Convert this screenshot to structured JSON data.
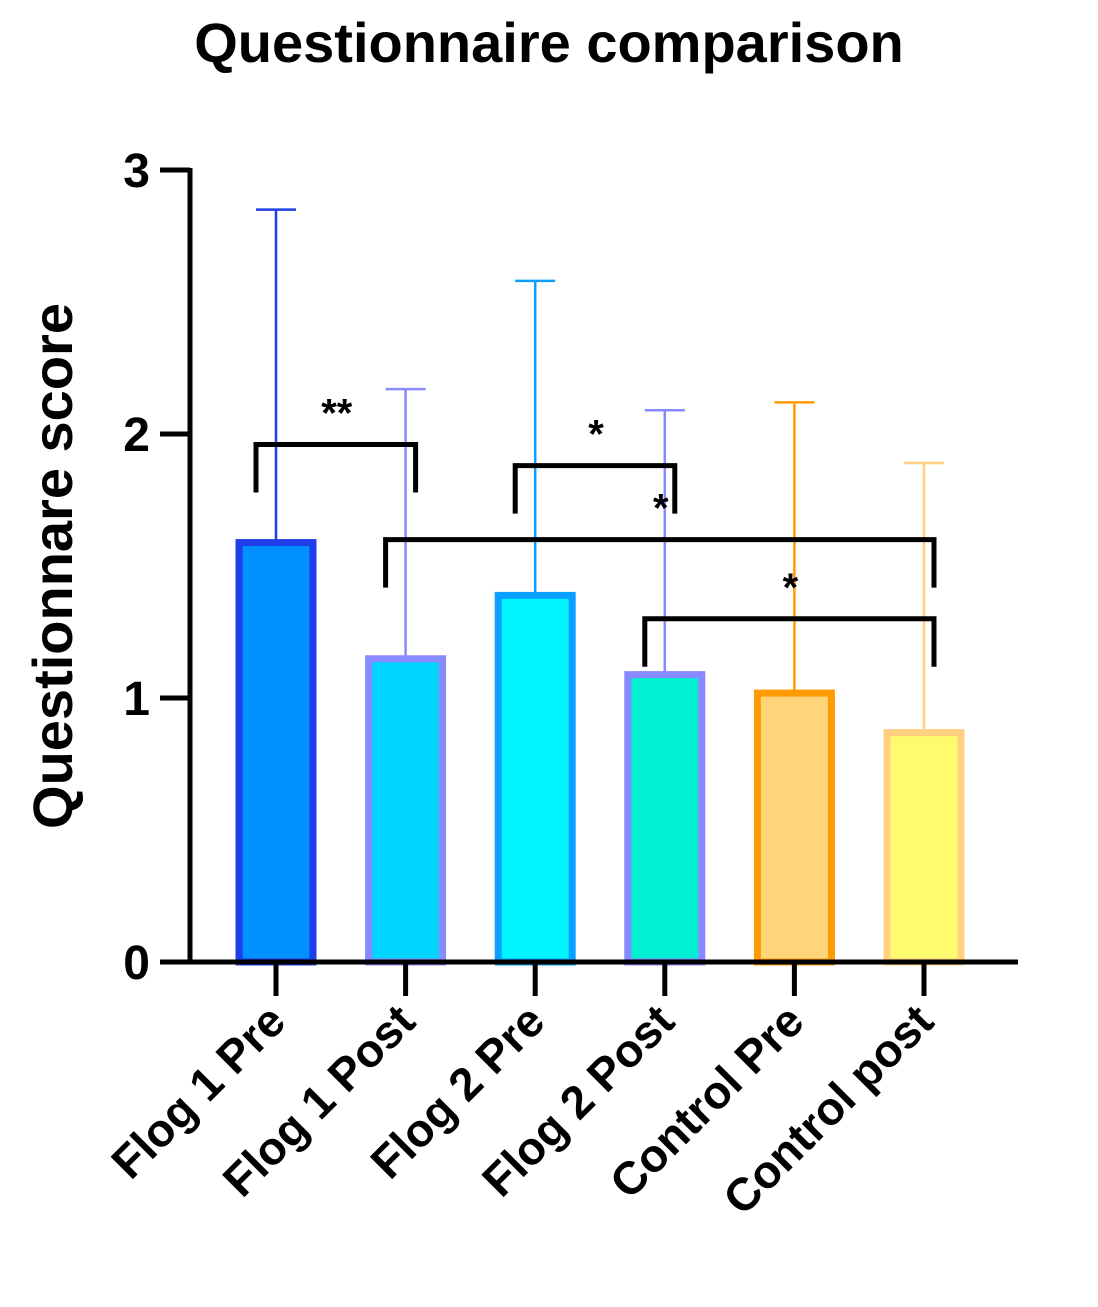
{
  "chart_data": {
    "type": "bar",
    "title": "Questionnaire comparison",
    "xlabel": "",
    "ylabel": "Questionnare score",
    "ylim": [
      0,
      3
    ],
    "yticks": [
      "0",
      "1",
      "2",
      "3"
    ],
    "grid": false,
    "categories": [
      "Flog 1 Pre",
      "Flog 1 Post",
      "Flog 2 Pre",
      "Flog 2 Post",
      "Control Pre",
      "Control post"
    ],
    "values": [
      1.6,
      1.16,
      1.4,
      1.1,
      1.03,
      0.88
    ],
    "error_upper": [
      2.85,
      2.17,
      2.58,
      2.09,
      2.12,
      1.89
    ],
    "fill_colors": [
      "#0090ff",
      "#00d4ff",
      "#00f5ff",
      "#00f0d4",
      "#ffd57a",
      "#fffb6e"
    ],
    "border_colors": [
      "#1f3de8",
      "#8a8aff",
      "#0aa0ff",
      "#8888ff",
      "#ff9a00",
      "#ffd080"
    ],
    "significance": [
      {
        "from": 0,
        "to": 1,
        "y": 1.96,
        "label": "**"
      },
      {
        "from": 2,
        "to": 3,
        "y": 1.88,
        "label": "*"
      },
      {
        "from": 1,
        "to": 5,
        "y": 1.6,
        "label": "*"
      },
      {
        "from": 3,
        "to": 5,
        "y": 1.3,
        "label": "*"
      }
    ]
  }
}
